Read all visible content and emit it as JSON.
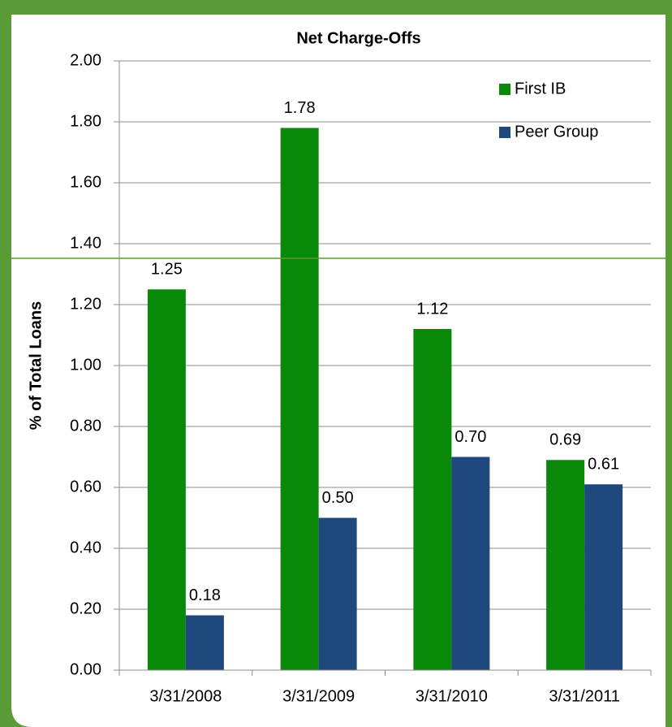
{
  "chart_data": {
    "type": "bar",
    "title": "Net Charge-Offs",
    "y_label": "% of Total Loans",
    "categories": [
      "3/31/2008",
      "3/31/2009",
      "3/31/2010",
      "3/31/2011"
    ],
    "series": [
      {
        "name": "First IB",
        "color": "#0a880a",
        "values": [
          1.25,
          1.78,
          1.12,
          0.69
        ],
        "value_labels": [
          "1.25",
          "1.78",
          "1.12",
          "0.69"
        ]
      },
      {
        "name": "Peer Group",
        "color": "#1f497d",
        "values": [
          0.18,
          0.5,
          0.7,
          0.61
        ],
        "value_labels": [
          "0.18",
          "0.50",
          "0.70",
          "0.61"
        ]
      }
    ],
    "ylim": [
      0,
      2
    ],
    "yticks": [
      {
        "value": 0,
        "label": "0.00"
      },
      {
        "value": 0.2,
        "label": "0.20"
      },
      {
        "value": 0.4,
        "label": "0.40"
      },
      {
        "value": 0.6,
        "label": "0.60"
      },
      {
        "value": 0.8,
        "label": "0.80"
      },
      {
        "value": 1,
        "label": "1.00"
      },
      {
        "value": 1.2,
        "label": "1.20"
      },
      {
        "value": 1.4,
        "label": "1.40"
      },
      {
        "value": 1.6,
        "label": "1.60"
      },
      {
        "value": 1.8,
        "label": "1.80"
      },
      {
        "value": 2,
        "label": "2.00"
      }
    ],
    "grid": true,
    "legend": "top-right"
  }
}
